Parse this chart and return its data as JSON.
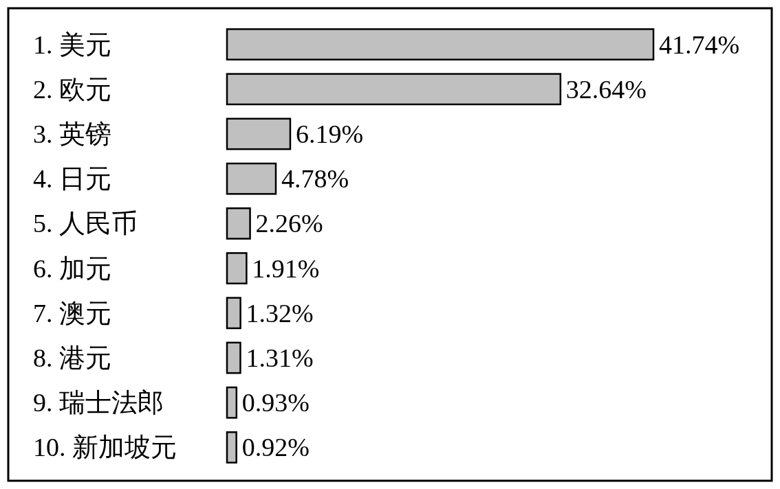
{
  "chart_data": {
    "type": "bar",
    "orientation": "horizontal",
    "color": "#c0c0c0",
    "value_labels": [
      "41.74%",
      "32.64%",
      "6.19%",
      "4.78%",
      "2.26%",
      "1.91%",
      "1.32%",
      "1.31%",
      "0.93%",
      "0.92%"
    ],
    "categories": [
      "1. 美元",
      "2. 欧元",
      "3. 英镑",
      "4. 日元",
      "5. 人民币",
      "6. 加元",
      "7. 澳元",
      "8. 港元",
      "9. 瑞士法郎",
      "10. 新加坡元"
    ],
    "values": [
      41.74,
      32.64,
      6.19,
      4.78,
      2.26,
      1.91,
      1.32,
      1.31,
      0.93,
      0.92
    ]
  }
}
